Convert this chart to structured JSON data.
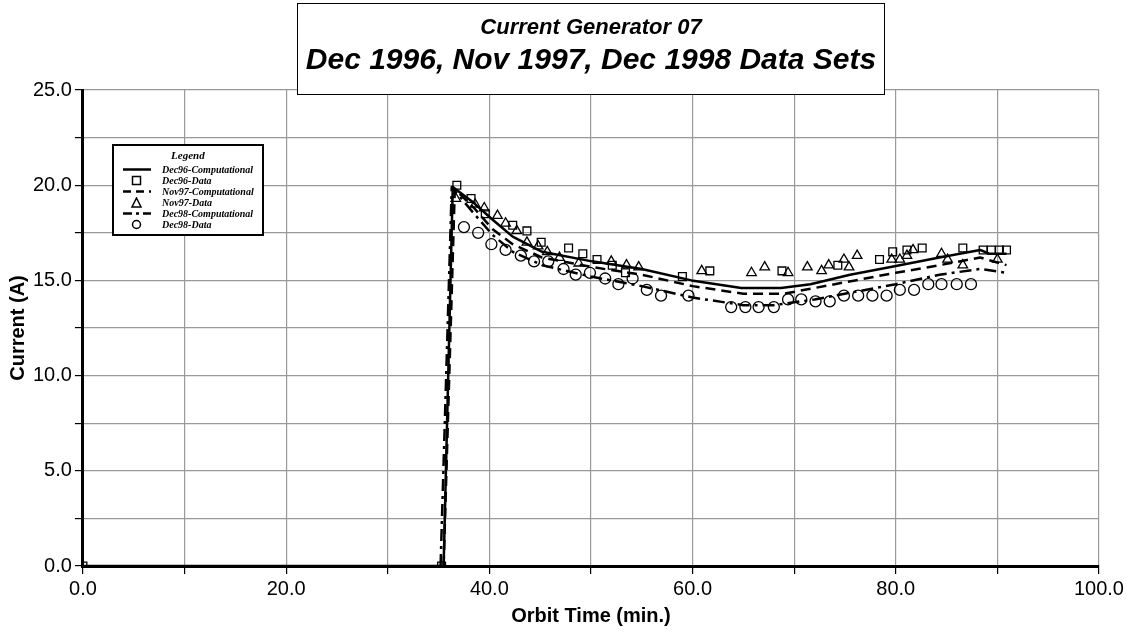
{
  "chart_data": {
    "type": "line",
    "title": "Current Generator 07",
    "subtitle": "Dec 1996, Nov 1997, Dec 1998 Data Sets",
    "xlabel": "Orbit Time (min.)",
    "ylabel": "Current (A)",
    "legend_title": "Legend",
    "legend": "top left",
    "grid": true,
    "xlim": [
      0,
      100
    ],
    "xticks": [
      {
        "value": 0,
        "label": "0.0"
      },
      {
        "value": 10,
        "label": null
      },
      {
        "value": 20,
        "label": "20.0"
      },
      {
        "value": 30,
        "label": null
      },
      {
        "value": 40,
        "label": "40.0"
      },
      {
        "value": 50,
        "label": null
      },
      {
        "value": 60,
        "label": "60.0"
      },
      {
        "value": 70,
        "label": null
      },
      {
        "value": 80,
        "label": "80.0"
      },
      {
        "value": 90,
        "label": null
      },
      {
        "value": 100,
        "label": "100.0"
      }
    ],
    "ylim": [
      0,
      25
    ],
    "yticks": [
      {
        "value": 0,
        "label": "0.0"
      },
      {
        "value": 2.5,
        "label": null
      },
      {
        "value": 5,
        "label": "5.0"
      },
      {
        "value": 7.5,
        "label": null
      },
      {
        "value": 10,
        "label": "10.0"
      },
      {
        "value": 12.5,
        "label": null
      },
      {
        "value": 15,
        "label": "15.0"
      },
      {
        "value": 17.5,
        "label": null
      },
      {
        "value": 20,
        "label": "20.0"
      },
      {
        "value": 22.5,
        "label": null
      },
      {
        "value": 25,
        "label": "25.0"
      }
    ],
    "series": [
      {
        "name": "Dec96-Computational",
        "line_style": "solid",
        "marker": "none",
        "color": "#000000",
        "x": [
          0,
          35.5,
          36.4,
          38.4,
          40.3,
          42.3,
          45.2,
          50.1,
          55,
          59.9,
          64.8,
          68.7,
          71.6,
          75.5,
          79.5,
          84.3,
          88.3,
          89.2,
          90.9
        ],
        "values": [
          0,
          0,
          19.9,
          19.1,
          18.2,
          17.3,
          16.5,
          16.0,
          15.6,
          15.0,
          14.6,
          14.6,
          14.8,
          15.3,
          15.7,
          16.2,
          16.6,
          16.4,
          16.4
        ]
      },
      {
        "name": "Dec96-Data",
        "type": "scatter",
        "marker": "square",
        "color": "#000000",
        "x": [
          0,
          35.3,
          36.8,
          38.2,
          39.6,
          42.3,
          43.7,
          45.1,
          47.8,
          49.2,
          50.6,
          52.1,
          53.4,
          59.0,
          61.7,
          68.8,
          74.3,
          78.4,
          79.7,
          81.1,
          82.6,
          86.6,
          88.6,
          89.4,
          90.2,
          90.9
        ],
        "values": [
          0,
          0,
          20.0,
          19.3,
          18.5,
          17.9,
          17.6,
          17.0,
          16.7,
          16.4,
          16.1,
          15.8,
          15.4,
          15.2,
          15.5,
          15.5,
          15.8,
          16.1,
          16.5,
          16.6,
          16.7,
          16.7,
          16.6,
          16.6,
          16.6,
          16.6
        ]
      },
      {
        "name": "Nov97-Computational",
        "line_style": "dashed",
        "marker": "none",
        "color": "#000000",
        "x": [
          35.5,
          36.6,
          38.5,
          40.3,
          42.3,
          45.2,
          50.1,
          55,
          60,
          65,
          69,
          72,
          76,
          80,
          84.3,
          88.3,
          90.9
        ],
        "values": [
          0,
          19.8,
          18.8,
          17.7,
          16.9,
          16.2,
          15.7,
          15.3,
          14.7,
          14.3,
          14.3,
          14.6,
          15.0,
          15.4,
          15.8,
          16.2,
          15.8
        ]
      },
      {
        "name": "Nov97-Data",
        "type": "scatter",
        "marker": "triangle",
        "color": "#000000",
        "x": [
          36.7,
          38.6,
          39.5,
          40.8,
          41.6,
          42.7,
          43.7,
          44.8,
          45.7,
          46.9,
          48.8,
          52.0,
          53.5,
          54.7,
          60.9,
          65.8,
          67.1,
          69.4,
          71.3,
          72.7,
          73.4,
          74.9,
          75.4,
          76.2,
          79.6,
          80.4,
          81.1,
          81.7,
          84.5,
          85.1,
          86.6,
          90.0
        ],
        "values": [
          19.3,
          19.0,
          18.8,
          18.4,
          18.0,
          17.6,
          17.0,
          16.8,
          16.5,
          16.2,
          15.9,
          16.0,
          15.8,
          15.7,
          15.5,
          15.4,
          15.7,
          15.4,
          15.7,
          15.5,
          15.8,
          16.1,
          15.7,
          16.3,
          16.1,
          16.1,
          16.3,
          16.6,
          16.4,
          16.1,
          15.8,
          16.1
        ]
      },
      {
        "name": "Dec98-Computational",
        "line_style": "dashdot",
        "marker": "none",
        "color": "#000000",
        "x": [
          35.2,
          36.3,
          38.5,
          40.3,
          42.3,
          45.2,
          50,
          55,
          60,
          65,
          68,
          72,
          76,
          80,
          84.3,
          88.3,
          90.9
        ],
        "values": [
          0,
          19.9,
          18.5,
          17.4,
          16.5,
          15.8,
          15.2,
          14.7,
          14.1,
          13.7,
          13.7,
          14.0,
          14.4,
          14.8,
          15.3,
          15.6,
          15.4
        ]
      },
      {
        "name": "Dec98-Data",
        "type": "scatter",
        "marker": "circle",
        "color": "#000000",
        "x": [
          37.5,
          38.9,
          40.2,
          41.6,
          43.1,
          44.4,
          45.8,
          47.3,
          48.5,
          49.9,
          51.4,
          52.7,
          54.1,
          55.5,
          56.9,
          59.6,
          63.8,
          65.2,
          66.5,
          68.0,
          69.4,
          70.7,
          72.1,
          73.5,
          74.9,
          76.3,
          77.7,
          79.1,
          80.4,
          81.8,
          83.2,
          84.5,
          86.0,
          87.4
        ],
        "values": [
          17.8,
          17.5,
          16.9,
          16.6,
          16.3,
          16.0,
          16.0,
          15.6,
          15.3,
          15.4,
          15.1,
          14.8,
          15.1,
          14.5,
          14.2,
          14.2,
          13.6,
          13.6,
          13.6,
          13.6,
          14.0,
          14.0,
          13.9,
          13.9,
          14.2,
          14.2,
          14.2,
          14.2,
          14.5,
          14.5,
          14.8,
          14.8,
          14.8,
          14.8
        ]
      }
    ]
  }
}
